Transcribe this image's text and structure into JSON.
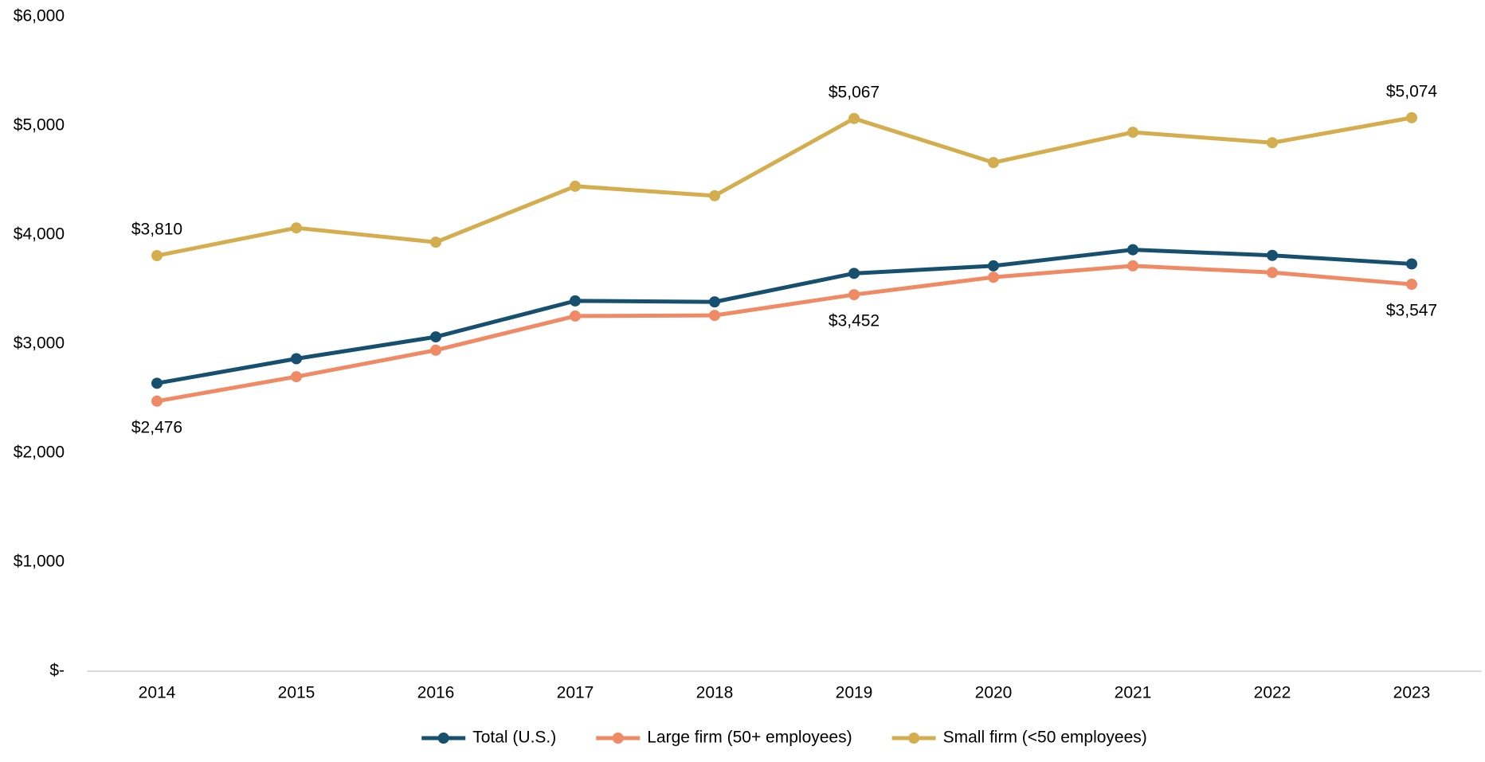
{
  "chart_data": {
    "type": "line",
    "categories": [
      "2014",
      "2015",
      "2016",
      "2017",
      "2018",
      "2019",
      "2020",
      "2021",
      "2022",
      "2023"
    ],
    "series": [
      {
        "name": "Total (U.S.)",
        "color": "#17506f",
        "values": [
          2640,
          2865,
          3065,
          3395,
          3386,
          3647,
          3716,
          3864,
          3812,
          3734
        ],
        "value_labels": [
          null,
          null,
          null,
          null,
          null,
          null,
          null,
          null,
          null,
          null
        ]
      },
      {
        "name": "Large firm (50+ employees)",
        "color": "#f08a65",
        "values": [
          2476,
          2700,
          2943,
          3256,
          3262,
          3452,
          3612,
          3716,
          3655,
          3547
        ],
        "value_labels": [
          "$2,476",
          null,
          null,
          null,
          null,
          "$3,452",
          null,
          null,
          null,
          "$3,547"
        ]
      },
      {
        "name": "Small firm (<50 employees)",
        "color": "#d4ae4e",
        "values": [
          3810,
          4064,
          3933,
          4446,
          4359,
          5067,
          4663,
          4941,
          4845,
          5074
        ],
        "value_labels": [
          "$3,810",
          null,
          null,
          null,
          null,
          "$5,067",
          null,
          null,
          null,
          "$5,074"
        ]
      }
    ],
    "ylim": [
      0,
      6000
    ],
    "yticks": [
      {
        "value": 0,
        "label": "$-"
      },
      {
        "value": 1000,
        "label": "$1,000"
      },
      {
        "value": 2000,
        "label": "$2,000"
      },
      {
        "value": 3000,
        "label": "$3,000"
      },
      {
        "value": 4000,
        "label": "$4,000"
      },
      {
        "value": 5000,
        "label": "$5,000"
      },
      {
        "value": 6000,
        "label": "$6,000"
      }
    ],
    "grid": false,
    "legend": "bottom"
  }
}
